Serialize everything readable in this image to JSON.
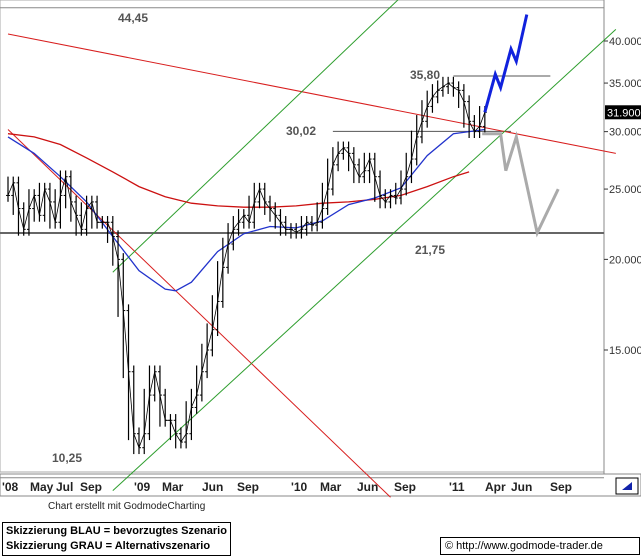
{
  "chart_data": {
    "type": "candlestick",
    "title": "",
    "xlabel": "",
    "ylabel": "",
    "scale": "log",
    "ylim": [
      9.4,
      46
    ],
    "y_ticks": [
      "15.000",
      "20.000",
      "25.000",
      "30.000",
      "35.000",
      "40.000"
    ],
    "x_ticks": [
      "'08",
      "May",
      "Jul",
      "Sep",
      "'09",
      "Mar",
      "Jun",
      "Sep",
      "'10",
      "Mar",
      "Jun",
      "Sep",
      "'11",
      "Apr",
      "Jun",
      "Sep"
    ],
    "current_price_label": "31.900",
    "current_price": 31.9,
    "annotations": [
      {
        "text": "44,45",
        "value": 44.45
      },
      {
        "text": "35,80",
        "value": 35.8
      },
      {
        "text": "30,02",
        "value": 30.02
      },
      {
        "text": "21,75",
        "value": 21.75
      },
      {
        "text": "10,25",
        "value": 10.25
      }
    ],
    "price_series": [
      [
        0,
        24.5
      ],
      [
        2,
        25.5
      ],
      [
        4,
        23.5
      ],
      [
        6,
        22
      ],
      [
        8,
        23.5
      ],
      [
        10,
        24.5
      ],
      [
        12,
        23
      ],
      [
        14,
        25
      ],
      [
        16,
        24
      ],
      [
        18,
        22.5
      ],
      [
        20,
        24.5
      ],
      [
        22,
        26
      ],
      [
        24,
        24
      ],
      [
        26,
        23
      ],
      [
        28,
        22
      ],
      [
        30,
        23.5
      ],
      [
        32,
        24
      ],
      [
        34,
        22.5
      ],
      [
        36,
        22.5
      ],
      [
        38,
        22.5
      ],
      [
        40,
        21.5
      ],
      [
        42,
        20
      ],
      [
        44,
        17
      ],
      [
        46,
        14
      ],
      [
        48,
        11.5
      ],
      [
        50,
        11
      ],
      [
        52,
        11.5
      ],
      [
        54,
        13
      ],
      [
        56,
        14
      ],
      [
        58,
        13
      ],
      [
        60,
        12
      ],
      [
        62,
        12
      ],
      [
        64,
        11.5
      ],
      [
        66,
        11.2
      ],
      [
        68,
        11.5
      ],
      [
        70,
        12.5
      ],
      [
        72,
        13
      ],
      [
        74,
        14
      ],
      [
        76,
        15
      ],
      [
        78,
        16
      ],
      [
        80,
        17.5
      ],
      [
        82,
        19.5
      ],
      [
        84,
        21
      ],
      [
        86,
        22
      ],
      [
        88,
        22.5
      ],
      [
        90,
        23
      ],
      [
        92,
        22.5
      ],
      [
        94,
        24
      ],
      [
        96,
        25
      ],
      [
        98,
        24
      ],
      [
        100,
        23.5
      ],
      [
        102,
        23
      ],
      [
        104,
        22.5
      ],
      [
        106,
        22
      ],
      [
        108,
        22
      ],
      [
        110,
        21.8
      ],
      [
        112,
        22
      ],
      [
        114,
        22.5
      ],
      [
        116,
        22.3
      ],
      [
        118,
        22.5
      ],
      [
        120,
        23.5
      ],
      [
        122,
        25
      ],
      [
        124,
        27
      ],
      [
        126,
        28
      ],
      [
        128,
        28.5
      ],
      [
        130,
        28
      ],
      [
        132,
        27
      ],
      [
        134,
        26
      ],
      [
        136,
        26.5
      ],
      [
        138,
        27.5
      ],
      [
        140,
        26
      ],
      [
        142,
        24.5
      ],
      [
        144,
        24
      ],
      [
        146,
        24.5
      ],
      [
        148,
        24.3
      ],
      [
        150,
        25
      ],
      [
        152,
        26
      ],
      [
        154,
        27.5
      ],
      [
        156,
        29.5
      ],
      [
        158,
        31
      ],
      [
        160,
        32.5
      ],
      [
        162,
        33.5
      ],
      [
        164,
        34.2
      ],
      [
        166,
        34.6
      ],
      [
        168,
        35
      ],
      [
        170,
        34.5
      ],
      [
        172,
        34.2
      ],
      [
        174,
        33
      ],
      [
        176,
        31
      ],
      [
        178,
        30
      ],
      [
        180,
        30.5
      ],
      [
        182,
        31.9
      ]
    ],
    "price_series_x_unit": "weeks",
    "price_series_x_start": "'08",
    "ma_blue": [
      [
        0,
        29.5
      ],
      [
        10,
        28
      ],
      [
        20,
        26
      ],
      [
        30,
        24
      ],
      [
        40,
        21.5
      ],
      [
        50,
        19.3
      ],
      [
        60,
        18.2
      ],
      [
        64,
        18.1
      ],
      [
        70,
        18.6
      ],
      [
        80,
        20.5
      ],
      [
        90,
        21.7
      ],
      [
        100,
        22.2
      ],
      [
        110,
        22.1
      ],
      [
        120,
        22.6
      ],
      [
        130,
        23.8
      ],
      [
        140,
        24.3
      ],
      [
        150,
        25.1
      ],
      [
        160,
        27.8
      ],
      [
        170,
        29.8
      ],
      [
        176,
        30.0
      ],
      [
        182,
        30.2
      ]
    ],
    "ma_red": [
      [
        0,
        29.8
      ],
      [
        10,
        29.5
      ],
      [
        20,
        28.8
      ],
      [
        30,
        27.6
      ],
      [
        40,
        26.4
      ],
      [
        50,
        25.2
      ],
      [
        60,
        24.4
      ],
      [
        70,
        23.9
      ],
      [
        80,
        23.7
      ],
      [
        90,
        23.6
      ],
      [
        100,
        23.6
      ],
      [
        110,
        23.7
      ],
      [
        120,
        23.9
      ],
      [
        130,
        24.0
      ],
      [
        140,
        24.2
      ],
      [
        150,
        24.5
      ],
      [
        160,
        25.2
      ],
      [
        170,
        26.0
      ],
      [
        176,
        26.4
      ]
    ],
    "trendlines": [
      {
        "color": "#d81e1e",
        "points": [
          [
            0,
            40.9
          ],
          [
            232,
            28
          ]
        ]
      },
      {
        "color": "#d81e1e",
        "points": [
          [
            0,
            30.2
          ],
          [
            146,
            9.4
          ]
        ]
      },
      {
        "color": "#2e9e2e",
        "points": [
          [
            40,
            9.6
          ],
          [
            232,
            41.5
          ]
        ]
      },
      {
        "color": "#2e9e2e",
        "points": [
          [
            40,
            19.2
          ],
          [
            150,
            46
          ]
        ]
      }
    ],
    "horizontal_levels": [
      {
        "value": 21.75,
        "color": "#666666"
      },
      {
        "value": 44.45,
        "color": "#888888"
      },
      {
        "value": 10.0,
        "color": "#888888"
      }
    ],
    "scenario_blue": [
      [
        182,
        31.9
      ],
      [
        186,
        36
      ],
      [
        188,
        34.5
      ],
      [
        192,
        39
      ],
      [
        194,
        37.5
      ],
      [
        198,
        43.5
      ]
    ],
    "scenario_grey": [
      [
        181,
        29.8
      ],
      [
        188,
        29.8
      ],
      [
        190,
        26.5
      ],
      [
        194,
        29.5
      ],
      [
        202,
        21.75
      ],
      [
        210,
        25
      ]
    ]
  },
  "credit": "Chart erstellt mit GodmodeCharting",
  "legend": {
    "line1": "Skizzierung BLAU = bevorzugtes Szenario",
    "line2": "Skizzierung GRAU = Alternativszenario"
  },
  "footer": {
    "copyright": "©",
    "url": "http://www.godmode-trader.de"
  },
  "colors": {
    "price": "#000000",
    "ma_blue": "#2233cc",
    "ma_red": "#cc1111",
    "scenario_blue": "#1122dd",
    "scenario_grey": "#aaaaaa",
    "price_tag_bg": "#000000"
  }
}
